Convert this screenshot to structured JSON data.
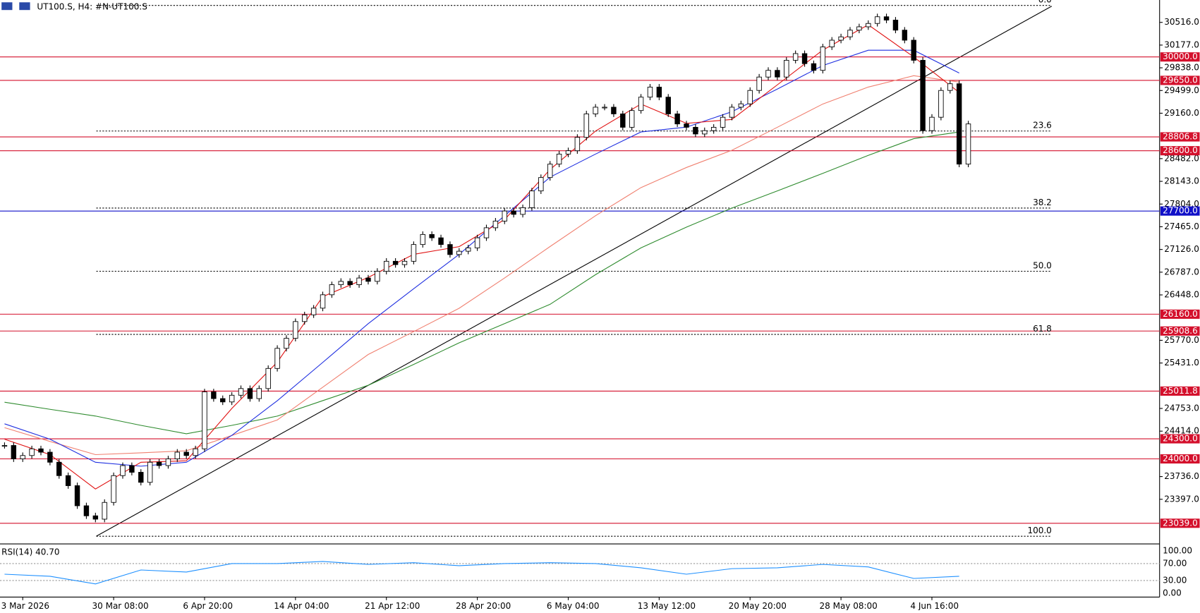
{
  "chart_data": {
    "type": "candlestick",
    "title": "UT100.S, H4:  #N-UT100.S",
    "ylim": [
      22742,
      30850
    ],
    "yticks": [
      {
        "value": 30516,
        "label": "30516.0"
      },
      {
        "value": 30177,
        "label": "30177.0"
      },
      {
        "value": 29838,
        "label": "29838.0"
      },
      {
        "value": 29499,
        "label": "29499.0"
      },
      {
        "value": 29160,
        "label": "29160.0"
      },
      {
        "value": 28482,
        "label": "28482.0"
      },
      {
        "value": 28143,
        "label": "28143.0"
      },
      {
        "value": 27804,
        "label": "27804.0"
      },
      {
        "value": 27465,
        "label": "27465.0"
      },
      {
        "value": 27126,
        "label": "27126.0"
      },
      {
        "value": 26787,
        "label": "26787.0"
      },
      {
        "value": 26448,
        "label": "26448.0"
      },
      {
        "value": 25770,
        "label": "25770.0"
      },
      {
        "value": 25431,
        "label": "25431.0"
      },
      {
        "value": 24753,
        "label": "24753.0"
      },
      {
        "value": 24414,
        "label": "24414.0"
      },
      {
        "value": 23736,
        "label": "23736.0"
      },
      {
        "value": 23397,
        "label": "23397.0"
      }
    ],
    "categories": [
      null,
      null,
      "3 Mar 2026",
      null,
      null,
      null,
      null,
      null,
      null,
      null,
      null,
      null,
      "30 Mar 08:00",
      null,
      null,
      null,
      null,
      null,
      null,
      null,
      null,
      null,
      "6 Apr 20:00",
      null,
      null,
      null,
      null,
      null,
      null,
      null,
      null,
      null,
      "14 Apr 04:00",
      null,
      null,
      null,
      null,
      null,
      null,
      null,
      null,
      null,
      "21 Apr 12:00",
      null,
      null,
      null,
      null,
      null,
      null,
      null,
      null,
      null,
      "28 Apr 20:00",
      null,
      null,
      null,
      null,
      null,
      null,
      null,
      null,
      null,
      "6 May 04:00",
      null,
      null,
      null,
      null,
      null,
      null,
      null,
      null,
      null,
      "13 May 12:00",
      null,
      null,
      null,
      null,
      null,
      null,
      null,
      null,
      null,
      "20 May 20:00",
      null,
      null,
      null,
      null,
      null,
      null,
      null,
      null,
      null,
      "28 May 08:00",
      null,
      null,
      null,
      null,
      null,
      null,
      null,
      null,
      null,
      "4 Jun 16:00",
      null,
      null,
      null,
      null
    ],
    "close": [
      24200,
      24000,
      24050,
      24150,
      24100,
      23950,
      23750,
      23600,
      23300,
      23150,
      23100,
      23350,
      23750,
      23900,
      23800,
      23650,
      23950,
      23900,
      24000,
      24100,
      24050,
      24150,
      25000,
      24900,
      24850,
      24950,
      25050,
      24900,
      25050,
      25350,
      25650,
      25800,
      26050,
      26150,
      26250,
      26450,
      26600,
      26650,
      26600,
      26700,
      26650,
      26800,
      26950,
      26900,
      26950,
      27200,
      27350,
      27300,
      27200,
      27050,
      27100,
      27150,
      27300,
      27450,
      27550,
      27700,
      27650,
      27750,
      28000,
      28200,
      28400,
      28550,
      28600,
      28800,
      29150,
      29250,
      29250,
      29150,
      28950,
      29200,
      29400,
      29550,
      29400,
      29150,
      29000,
      28950,
      28850,
      28900,
      28950,
      29100,
      29250,
      29300,
      29500,
      29700,
      29800,
      29700,
      29950,
      30050,
      29900,
      29800,
      30150,
      30250,
      30300,
      30400,
      30450,
      30500,
      30600,
      30550,
      30400,
      30250,
      29950,
      28900,
      29100,
      29500,
      29600,
      28400,
      29000
    ],
    "series": [
      {
        "color": "#2e8b2e",
        "x": [
          0,
          5,
          10,
          15,
          20,
          25,
          30,
          35,
          40,
          45,
          50,
          55,
          60,
          65,
          70,
          75,
          80,
          85,
          90,
          95,
          100,
          105
        ],
        "values": [
          24846,
          24740,
          24640,
          24500,
          24375,
          24500,
          24639,
          24870,
          25099,
          25410,
          25732,
          26020,
          26307,
          26750,
          27150,
          27460,
          27744,
          28000,
          28262,
          28530,
          28780,
          28880
        ]
      },
      {
        "color": "#f08070",
        "x": [
          0,
          5,
          10,
          15,
          20,
          25,
          30,
          35,
          40,
          45,
          50,
          55,
          60,
          65,
          70,
          75,
          80,
          85,
          90,
          95,
          100,
          105
        ],
        "values": [
          24466,
          24260,
          24064,
          24090,
          24121,
          24350,
          24581,
          25070,
          25559,
          25900,
          26249,
          26700,
          27170,
          27630,
          28050,
          28350,
          28607,
          28950,
          29297,
          29550,
          29720,
          29625
        ]
      },
      {
        "color": "#1f2fe0",
        "x": [
          0,
          5,
          10,
          15,
          20,
          25,
          30,
          35,
          40,
          45,
          50,
          55,
          60,
          65,
          70,
          75,
          80,
          85,
          90,
          95,
          100,
          105
        ],
        "values": [
          24524,
          24294,
          23949,
          23891,
          23949,
          24351,
          24869,
          25440,
          26019,
          26540,
          27054,
          27630,
          28205,
          28550,
          28880,
          28952,
          29182,
          29520,
          29872,
          30100,
          30100,
          29760
        ]
      },
      {
        "color": "#e01010",
        "x": [
          0,
          5,
          10,
          15,
          20,
          25,
          30,
          35,
          40,
          45,
          50,
          55,
          60,
          65,
          70,
          75,
          80,
          85,
          90,
          95,
          100,
          105
        ],
        "values": [
          24294,
          24064,
          23550,
          23949,
          23972,
          24754,
          25444,
          26422,
          26709,
          27054,
          27169,
          27572,
          28320,
          28894,
          29297,
          29009,
          29067,
          29584,
          30102,
          30480,
          30000,
          29470
        ]
      }
    ],
    "levels": [
      {
        "value": 30000,
        "label": "30000.0",
        "color": "#d4102c"
      },
      {
        "value": 29650,
        "label": "29650.0",
        "color": "#d4102c"
      },
      {
        "value": 28806.8,
        "label": "28806.8",
        "color": "#d4102c"
      },
      {
        "value": 28600,
        "label": "28600.0",
        "color": "#d4102c"
      },
      {
        "value": 27700,
        "label": "27700.0",
        "color": "#1010c8"
      },
      {
        "value": 26160,
        "label": "26160.0",
        "color": "#d4102c"
      },
      {
        "value": 25908.6,
        "label": "25908.6",
        "color": "#d4102c"
      },
      {
        "value": 25011.8,
        "label": "25011.8",
        "color": "#d4102c"
      },
      {
        "value": 24300,
        "label": "24300.0",
        "color": "#d4102c"
      },
      {
        "value": 24000,
        "label": "24000.0",
        "color": "#d4102c"
      },
      {
        "value": 23039,
        "label": "23039.0",
        "color": "#d4102c"
      }
    ],
    "fib_levels": [
      {
        "value": 30769,
        "label": "0.0"
      },
      {
        "value": 28894,
        "label": "23.6"
      },
      {
        "value": 27744,
        "label": "38.2"
      },
      {
        "value": 26801,
        "label": "50.0"
      },
      {
        "value": 25858,
        "label": "61.8"
      },
      {
        "value": 22845,
        "label": "100.0"
      }
    ],
    "rsi": {
      "label": "RSI(14) 40.70",
      "color": "#1e90ff",
      "ylim": [
        0,
        100
      ],
      "yticks": [
        {
          "value": 100,
          "label": "100.00"
        },
        {
          "value": 70,
          "label": "70.00"
        },
        {
          "value": 30,
          "label": "30.00"
        },
        {
          "value": 0,
          "label": "0.00"
        }
      ],
      "x": [
        0,
        5,
        10,
        15,
        20,
        25,
        30,
        35,
        40,
        45,
        50,
        55,
        60,
        65,
        70,
        75,
        80,
        85,
        90,
        95,
        100,
        105
      ],
      "values": [
        45,
        40,
        22,
        55,
        50,
        70,
        70,
        75,
        68,
        72,
        65,
        70,
        72,
        70,
        60,
        45,
        58,
        60,
        68,
        62,
        35,
        40
      ]
    }
  }
}
